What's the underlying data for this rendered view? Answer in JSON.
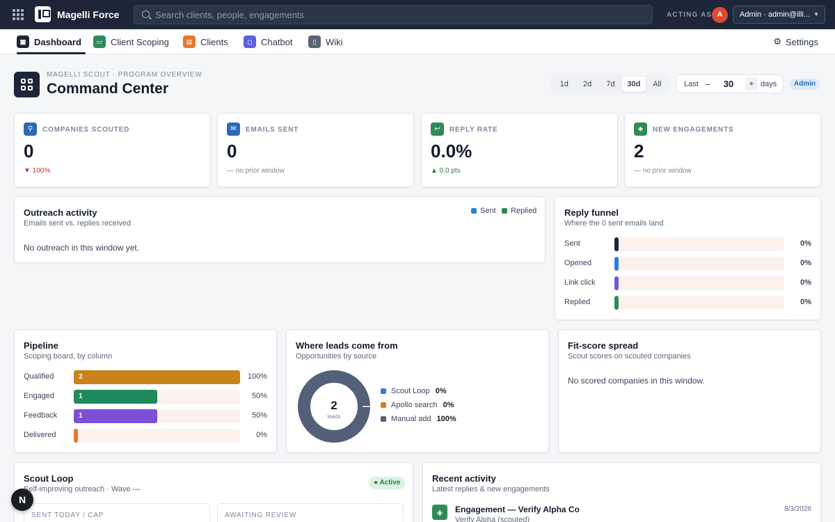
{
  "topbar": {
    "brand": "Magelli Force",
    "search_placeholder": "Search clients, people, engagements",
    "acting_as_label": "ACTING AS",
    "avatar_initial": "A",
    "user_label": "Admin · admin@illi..."
  },
  "nav": {
    "tabs": [
      {
        "label": "Dashboard",
        "icon": "grid-icon",
        "color": "#1c2638"
      },
      {
        "label": "Client Scoping",
        "icon": "briefcase-icon",
        "color": "#2f8a57"
      },
      {
        "label": "Clients",
        "icon": "document-icon",
        "color": "#e8772e"
      },
      {
        "label": "Chatbot",
        "icon": "chat-icon",
        "color": "#5b5fe0"
      },
      {
        "label": "Wiki",
        "icon": "book-icon",
        "color": "#5b6475"
      }
    ],
    "settings_label": "Settings"
  },
  "header": {
    "eyebrow": "MAGELLI SCOUT · PROGRAM OVERVIEW",
    "title": "Command Center",
    "ranges": [
      "1d",
      "2d",
      "7d",
      "30d",
      "All"
    ],
    "active_range": "30d",
    "days_prefix": "Last",
    "days_value": "30",
    "days_suffix": "days",
    "minus": "–",
    "plus": "+",
    "role_badge": "Admin"
  },
  "kpis": [
    {
      "label": "COMPANIES SCOUTED",
      "value": "0",
      "delta": "▼ 100%",
      "delta_color": "#c0392b",
      "icon": "pin-icon",
      "icon_color": "#2c6ab8"
    },
    {
      "label": "EMAILS SENT",
      "value": "0",
      "delta": "— no prior window",
      "delta_color": "#7d8698",
      "icon": "mail-icon",
      "icon_color": "#2c6ab8"
    },
    {
      "label": "REPLY RATE",
      "value": "0.0%",
      "delta": "▲ 0.0 pts",
      "delta_color": "#2a7a45",
      "icon": "reply-icon",
      "icon_color": "#2f8a57"
    },
    {
      "label": "NEW ENGAGEMENTS",
      "value": "2",
      "delta": "— no prior window",
      "delta_color": "#7d8698",
      "icon": "diamond-icon",
      "icon_color": "#2f8a57"
    }
  ],
  "outreach": {
    "title": "Outreach activity",
    "subtitle": "Emails sent vs. replies received",
    "legend": [
      {
        "name": "Sent",
        "color": "#2c6ab8"
      },
      {
        "name": "Replied",
        "color": "#2f8a57"
      }
    ],
    "empty": "No outreach in this window yet."
  },
  "funnel": {
    "title": "Reply funnel",
    "subtitle": "Where the 0 sent emails land",
    "rows": [
      {
        "label": "Sent",
        "pct": "0%",
        "value": 0,
        "color": "#1c2638"
      },
      {
        "label": "Opened",
        "pct": "0%",
        "value": 0,
        "color": "#2c7ed6"
      },
      {
        "label": "Link click",
        "pct": "0%",
        "value": 0,
        "color": "#6a5ae0"
      },
      {
        "label": "Replied",
        "pct": "0%",
        "value": 0,
        "color": "#2f8a57"
      }
    ]
  },
  "pipeline": {
    "title": "Pipeline",
    "subtitle": "Scoping board, by column",
    "rows": [
      {
        "label": "Qualified",
        "count": "2",
        "pct": "100%",
        "value": 1.0,
        "color": "#c9821c"
      },
      {
        "label": "Engaged",
        "count": "1",
        "pct": "50%",
        "value": 0.5,
        "color": "#1f8a5e"
      },
      {
        "label": "Feedback",
        "count": "1",
        "pct": "50%",
        "value": 0.5,
        "color": "#7b4fd6"
      },
      {
        "label": "Delivered",
        "count": "",
        "pct": "0%",
        "value": 0,
        "color": "#e8772e"
      }
    ]
  },
  "sources": {
    "title": "Where leads come from",
    "subtitle": "Opportunities by source",
    "total": "2",
    "total_label": "leads",
    "rows": [
      {
        "label": "Scout Loop",
        "pct": "0%",
        "value": 0,
        "color": "#2c7ed6"
      },
      {
        "label": "Apollo search",
        "pct": "0%",
        "value": 0,
        "color": "#c9821c"
      },
      {
        "label": "Manual add",
        "pct": "100%",
        "value": 100,
        "color": "#545f7a"
      }
    ]
  },
  "fitscore": {
    "title": "Fit-score spread",
    "subtitle": "Scout scores on scouted companies",
    "empty": "No scored companies in this window."
  },
  "scout_loop": {
    "title": "Scout Loop",
    "subtitle": "Self-improving outreach · Wave —",
    "status": "● Active",
    "tiles": [
      "SENT TODAY / CAP",
      "AWAITING REVIEW"
    ]
  },
  "recent": {
    "title": "Recent activity",
    "subtitle": "Latest replies & new engagements",
    "items": [
      {
        "title": "Engagement — Verify Alpha Co",
        "sub": "Verify Alpha (scouted)",
        "date": "8/3/2026",
        "icon": "diamond-icon"
      }
    ]
  },
  "fab_label": "N"
}
